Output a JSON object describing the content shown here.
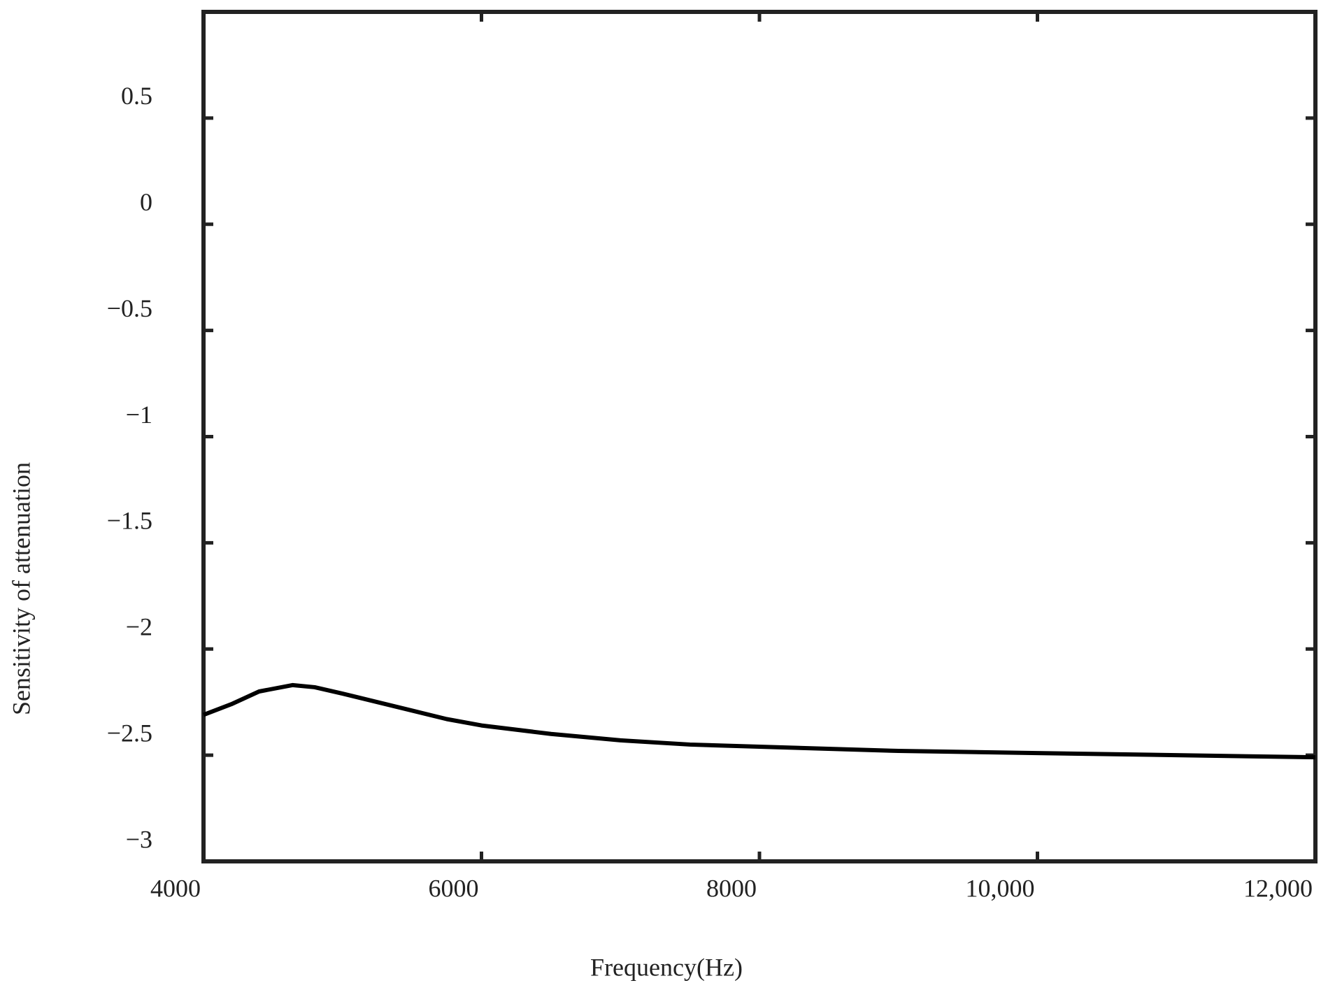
{
  "chart_data": {
    "type": "line",
    "x_label": "Frequency(Hz)",
    "y_label": "Sensitivity of attenuation",
    "x": [
      4000,
      4200,
      4400,
      4640,
      4800,
      5000,
      5250,
      5500,
      5750,
      6000,
      6500,
      7000,
      7500,
      8000,
      9000,
      10000,
      11000,
      12000
    ],
    "series": [
      {
        "color": "#000000",
        "values": [
          -2.31,
          -2.26,
          -2.2,
          -2.17,
          -2.18,
          -2.21,
          -2.25,
          -2.29,
          -2.33,
          -2.36,
          -2.4,
          -2.43,
          -2.45,
          -2.46,
          -2.48,
          -2.49,
          -2.5,
          -2.51
        ]
      }
    ],
    "xlim": [
      4000,
      12000
    ],
    "xticks": [
      4000,
      6000,
      8000,
      {
        "value": 10000,
        "label": "10,000"
      },
      {
        "value": 12000,
        "label": "12,000"
      }
    ],
    "ylim": [
      -3,
      1
    ],
    "yticks": [
      {
        "value": -3,
        "label": "−3"
      },
      {
        "value": -2.5,
        "label": "−2.5"
      },
      {
        "value": -2,
        "label": "−2"
      },
      {
        "value": -1.5,
        "label": "−1.5"
      },
      {
        "value": -1,
        "label": "−1"
      },
      {
        "value": -0.5,
        "label": "−0.5"
      },
      0,
      0.5
    ],
    "grid": false
  }
}
